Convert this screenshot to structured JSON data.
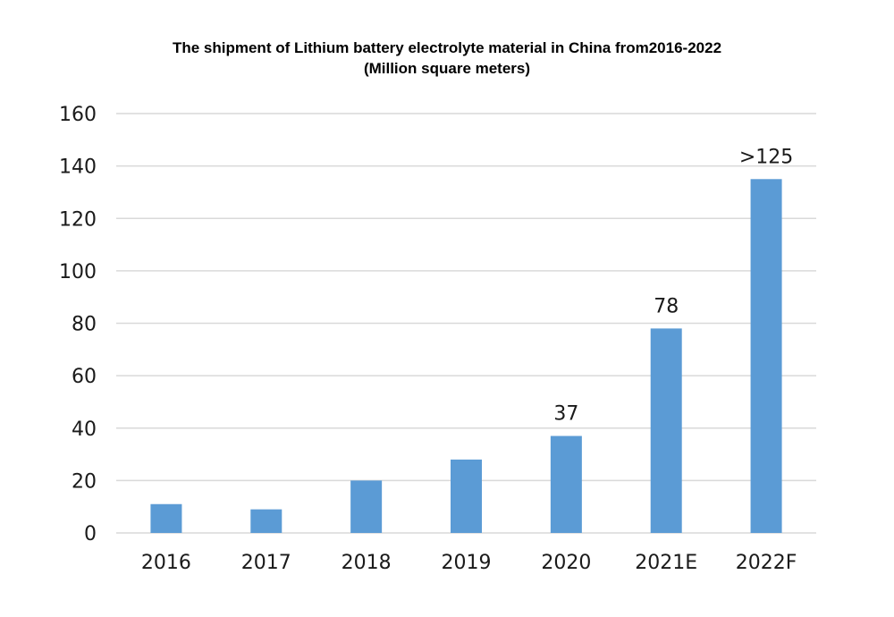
{
  "chart_data": {
    "type": "bar",
    "title": "The shipment of Lithium battery electrolyte material in China from2016-2022",
    "subtitle": "(Million square meters)",
    "categories": [
      "2016",
      "2017",
      "2018",
      "2019",
      "2020",
      "2021E",
      "2022F"
    ],
    "values": [
      11,
      9,
      20,
      28,
      37,
      78,
      135
    ],
    "data_labels": [
      "",
      "",
      "",
      "",
      "37",
      "78",
      ">125"
    ],
    "ylim": [
      0,
      160
    ],
    "yticks": [
      0,
      20,
      40,
      60,
      80,
      100,
      120,
      140,
      160
    ],
    "grid": true,
    "legend": "none",
    "bar_color": "#5b9bd5",
    "grid_color": "#d9d9d9"
  }
}
